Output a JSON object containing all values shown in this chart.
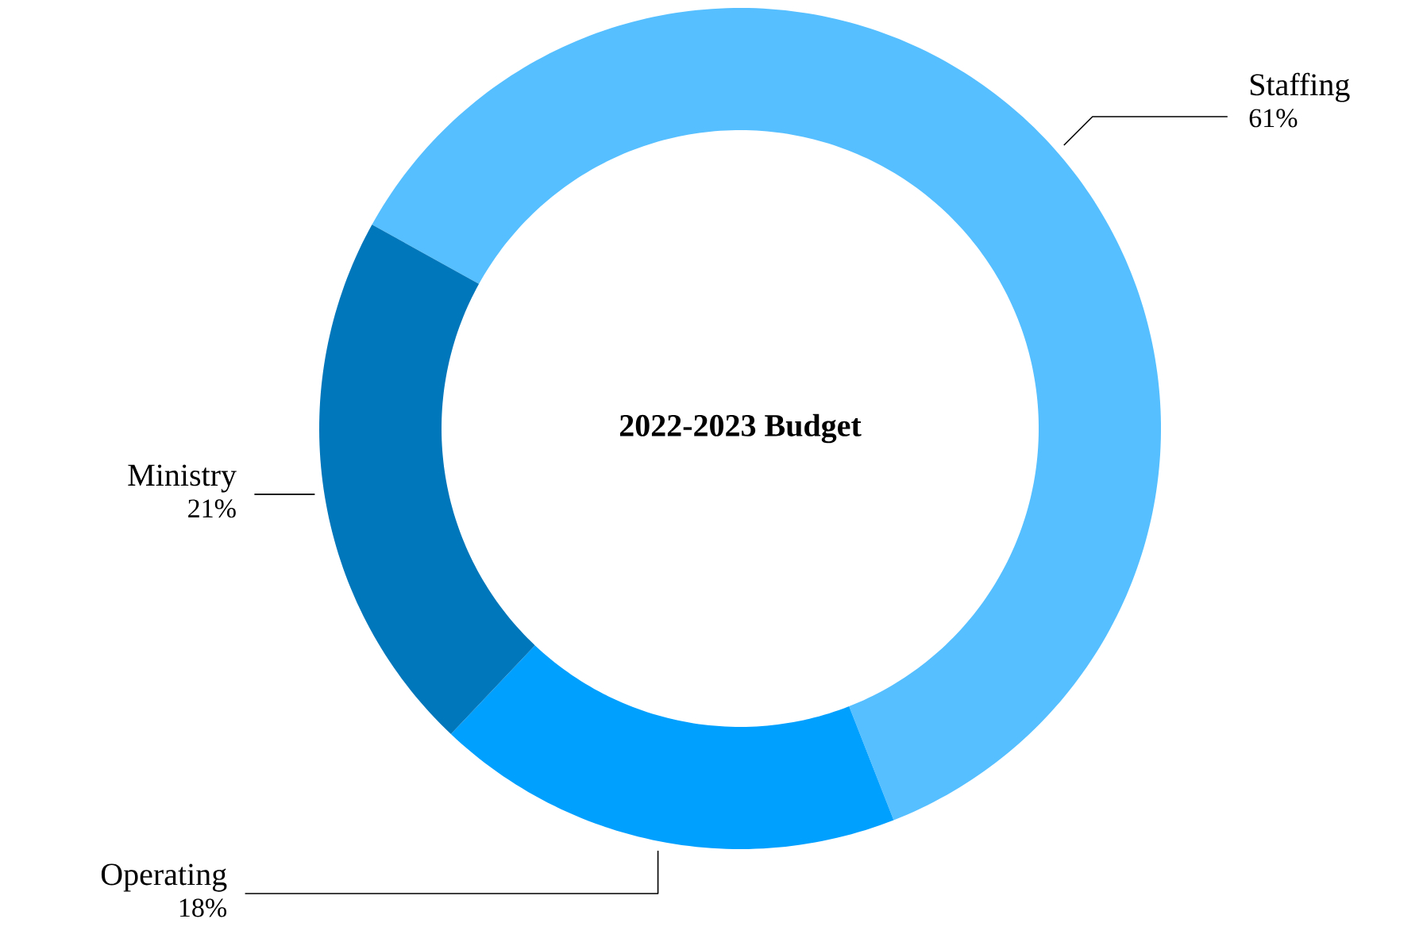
{
  "chart_data": {
    "type": "donut",
    "title": "2022-2023 Budget",
    "categories": [
      "Staffing",
      "Operating",
      "Ministry"
    ],
    "values": [
      61,
      18,
      21
    ],
    "value_labels": [
      "61%",
      "18%",
      "21%"
    ],
    "colors": [
      "#56bfff",
      "#00a0ff",
      "#0077bb"
    ]
  }
}
